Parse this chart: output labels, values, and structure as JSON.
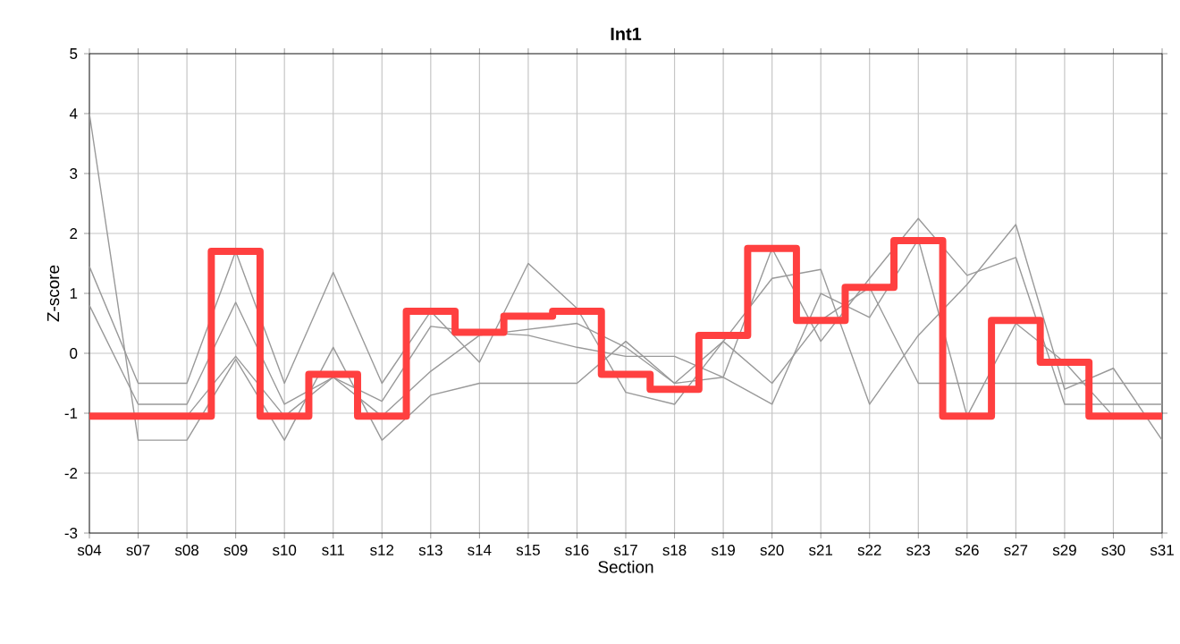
{
  "chart_data": {
    "type": "line",
    "title": "Int1",
    "xlabel": "Section",
    "ylabel": "Z-score",
    "categories": [
      "s04",
      "s07",
      "s08",
      "s09",
      "s10",
      "s11",
      "s12",
      "s13",
      "s14",
      "s15",
      "s16",
      "s17",
      "s18",
      "s19",
      "s20",
      "s21",
      "s22",
      "s23",
      "s26",
      "s27",
      "s29",
      "s30",
      "s31"
    ],
    "ylim": [
      -3,
      5
    ],
    "yticks": [
      -3,
      -2,
      -1,
      0,
      1,
      2,
      3,
      4,
      5
    ],
    "grid": true,
    "series": [
      {
        "color": "#999999",
        "values": [
          4.0,
          -1.45,
          -1.45,
          -0.1,
          -1.45,
          0.1,
          -1.45,
          -0.7,
          -0.5,
          -0.5,
          -0.5,
          0.2,
          -0.5,
          -0.4,
          1.75,
          0.2,
          1.25,
          2.25,
          1.3,
          1.6,
          -0.85,
          -0.85,
          -0.85
        ]
      },
      {
        "color": "#999999",
        "values": [
          1.45,
          -0.5,
          -0.5,
          1.7,
          -0.5,
          1.35,
          -0.5,
          0.7,
          -0.15,
          1.5,
          0.75,
          -0.65,
          -0.85,
          0.2,
          1.25,
          1.4,
          -0.85,
          0.3,
          1.15,
          2.15,
          -0.6,
          -0.25,
          -1.45
        ]
      },
      {
        "color": "#999999",
        "values": [
          0.8,
          -0.85,
          -0.85,
          0.85,
          -0.85,
          -0.4,
          -0.8,
          0.45,
          0.35,
          0.3,
          0.1,
          -0.05,
          -0.05,
          -0.4,
          -0.85,
          1.0,
          0.6,
          1.9,
          -1.05,
          0.5,
          -0.15,
          -1.05,
          -1.05
        ]
      },
      {
        "color": "#999999",
        "values": [
          -1.05,
          -1.05,
          -1.05,
          -0.05,
          -1.05,
          -0.4,
          -1.05,
          -0.3,
          0.3,
          null,
          0.5,
          0.1,
          -0.5,
          0.2,
          -0.5,
          0.55,
          1.1,
          -0.5,
          -0.5,
          -0.5,
          -0.5,
          -0.5,
          -0.5
        ]
      },
      {
        "type": "step",
        "color": "#ff4040",
        "values": [
          -1.05,
          -1.05,
          -1.05,
          1.7,
          -1.05,
          -0.35,
          -1.05,
          0.7,
          0.35,
          0.62,
          0.7,
          -0.35,
          -0.6,
          0.3,
          1.75,
          0.55,
          1.1,
          1.88,
          -1.05,
          0.55,
          -0.15,
          -1.05,
          -1.05
        ]
      }
    ]
  }
}
